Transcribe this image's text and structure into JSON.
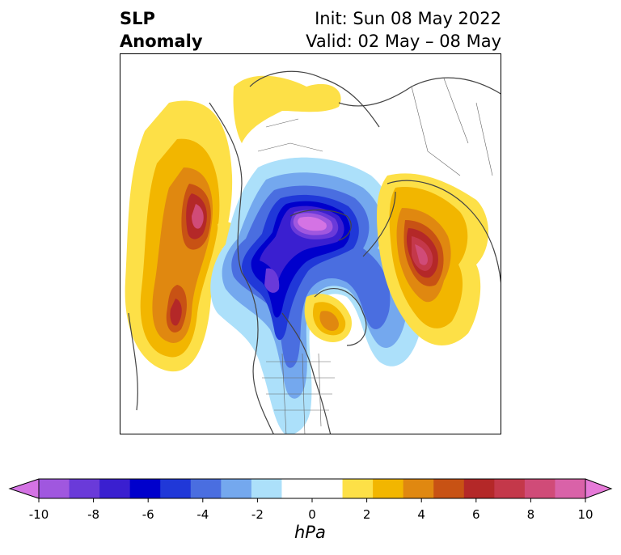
{
  "title": {
    "left_line1": "SLP",
    "left_line2": "Anomaly",
    "right_line1": "Init: Sun 08 May 2022",
    "right_line2": "Valid: 02 May – 08 May"
  },
  "colorbar": {
    "label": "hPa",
    "ticks": [
      "-10",
      "-8",
      "-6",
      "-4",
      "-2",
      "0",
      "2",
      "4",
      "6",
      "8",
      "10"
    ],
    "colors": [
      "#d473e4",
      "#a057df",
      "#6a3ad9",
      "#3a1fd0",
      "#0000cc",
      "#2038d8",
      "#4a6ee0",
      "#74a8ee",
      "#ace0fa",
      "#ffffff",
      "#ffffff",
      "#fde047",
      "#f2b600",
      "#e08810",
      "#c85214",
      "#b42828",
      "#c4384a",
      "#d04b78",
      "#d962a8",
      "#e67ad8"
    ]
  }
}
